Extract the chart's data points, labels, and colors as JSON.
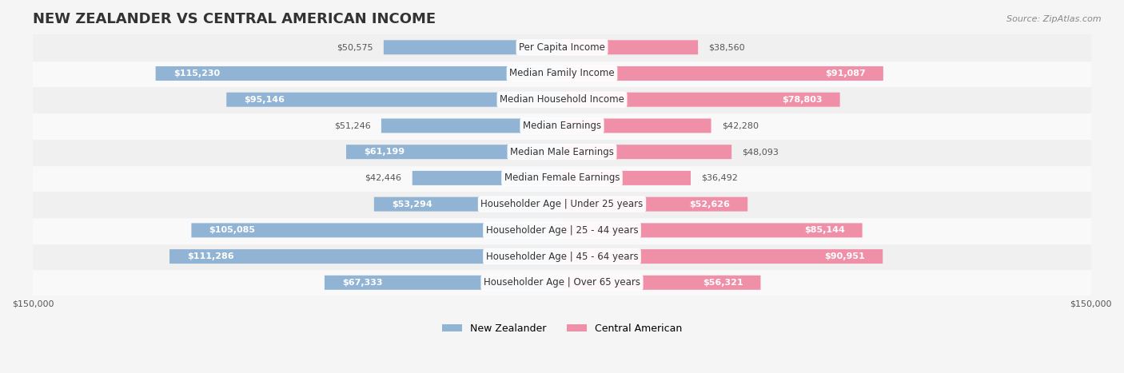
{
  "title": "NEW ZEALANDER VS CENTRAL AMERICAN INCOME",
  "source": "Source: ZipAtlas.com",
  "categories": [
    "Per Capita Income",
    "Median Family Income",
    "Median Household Income",
    "Median Earnings",
    "Median Male Earnings",
    "Median Female Earnings",
    "Householder Age | Under 25 years",
    "Householder Age | 25 - 44 years",
    "Householder Age | 45 - 64 years",
    "Householder Age | Over 65 years"
  ],
  "nz_values": [
    50575,
    115230,
    95146,
    51246,
    61199,
    42446,
    53294,
    105085,
    111286,
    67333
  ],
  "ca_values": [
    38560,
    91087,
    78803,
    42280,
    48093,
    36492,
    52626,
    85144,
    90951,
    56321
  ],
  "nz_labels": [
    "$50,575",
    "$115,230",
    "$95,146",
    "$51,246",
    "$61,199",
    "$42,446",
    "$53,294",
    "$105,085",
    "$111,286",
    "$67,333"
  ],
  "ca_labels": [
    "$38,560",
    "$91,087",
    "$78,803",
    "$42,280",
    "$48,093",
    "$36,492",
    "$52,626",
    "$85,144",
    "$90,951",
    "$56,321"
  ],
  "nz_color": "#92b4d4",
  "nz_color_dark": "#6a9fc0",
  "ca_color": "#f090a8",
  "ca_color_dark": "#e0607a",
  "max_value": 150000,
  "bar_height": 0.55,
  "background_color": "#f5f5f5",
  "row_bg_light": "#ffffff",
  "row_bg_dark": "#eeeeee",
  "title_fontsize": 13,
  "label_fontsize": 8.5,
  "value_fontsize": 8,
  "legend_fontsize": 9,
  "axis_label_fontsize": 8
}
